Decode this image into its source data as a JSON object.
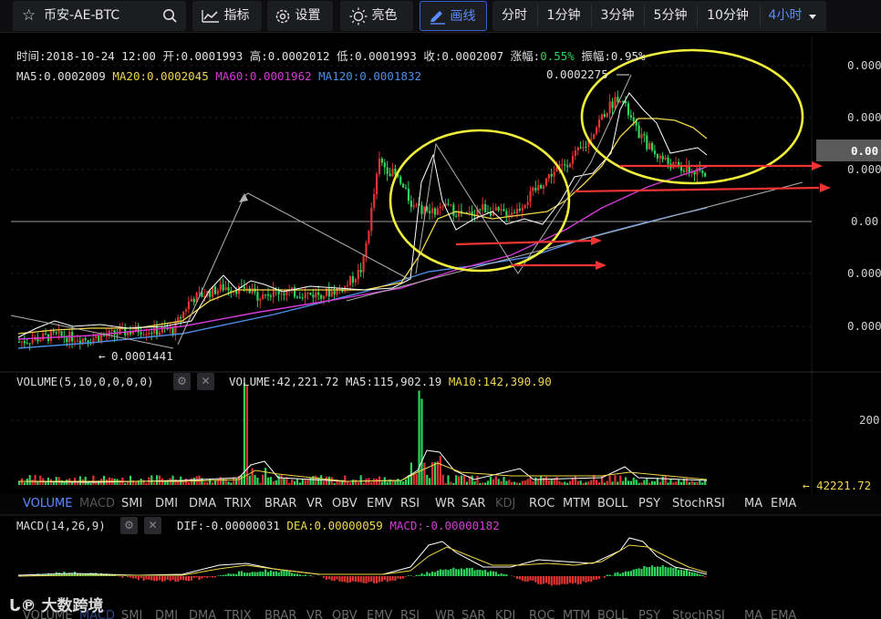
{
  "toolbar": {
    "symbol": "币安-AE-BTC",
    "indicator_label": "指标",
    "settings_label": "设置",
    "brightness_label": "亮色",
    "draw_label": "画线",
    "intervals": [
      "分时",
      "1分钟",
      "3分钟",
      "5分钟",
      "10分钟",
      "4小时"
    ],
    "active_interval": "4小时"
  },
  "info": {
    "time": "时间:2018-10-24 12:00",
    "open": "开:0.0001993",
    "high": "高:0.0002012",
    "low": "低:0.0001993",
    "close": "收:0.0002007",
    "change_label": "涨幅:",
    "change_value": "0.55%",
    "amplitude_label": "振幅:",
    "amplitude_value": "0.95%"
  },
  "ma_legend": {
    "ma5": "MA5:0.0002009",
    "ma20": "MA20:0.0002045",
    "ma60": "MA60:0.0001962",
    "ma120": "MA120:0.0001832"
  },
  "price_annotations": {
    "high_marker": "0.0002275",
    "low_marker": "0.0001441",
    "current_price_tag": "0.00"
  },
  "volume_legend": {
    "title": "VOLUME(5,10,0,0,0,0)",
    "volume": "VOLUME:42,221.72",
    "ma5": "MA5:115,902.19",
    "ma10": "MA10:142,390.90",
    "axis_tick": "200",
    "last_value": "42221.72"
  },
  "indicator_tabs": [
    "VOLUME",
    "MACD",
    "SMI",
    "DMI",
    "DMA",
    "TRIX",
    "BRAR",
    "VR",
    "OBV",
    "EMV",
    "RSI",
    "WR",
    "SAR",
    "KDJ",
    "ROC",
    "MTM",
    "BOLL",
    "PSY",
    "StochRSI",
    "MA",
    "EMA"
  ],
  "macd_legend": {
    "title": "MACD(14,26,9)",
    "dif": "DIF:-0.00000031",
    "dea": "DEA:0.00000059",
    "macd": "MACD:-0.00000182"
  },
  "watermark": "大数跨境",
  "colors": {
    "up": "#e33333",
    "down": "#2ed45c",
    "ma5": "#ffffff",
    "ma20": "#f0d74a",
    "ma60": "#d43bd6",
    "ma120": "#4c8fe8",
    "annotation_circle": "#f2ef3a",
    "annotation_arrow": "#ee3333",
    "accent": "#5b8bff"
  },
  "chart_data": {
    "type": "candlestick",
    "symbol": "AE/BTC",
    "interval": "4h",
    "last_bar": {
      "time": "2018-10-24 12:00",
      "open": 0.0001993,
      "high": 0.0002012,
      "low": 0.0001993,
      "close": 0.0002007,
      "change_pct": 0.55,
      "amplitude_pct": 0.95
    },
    "marked_extremes": {
      "high": 0.0002275,
      "low": 0.0001441
    },
    "moving_averages": {
      "MA5": 0.0002009,
      "MA20": 0.0002045,
      "MA60": 0.0001962,
      "MA120": 0.0001832
    },
    "y_axis_tick_labels": [
      "0.000",
      "0.000",
      "0.00",
      "0.000",
      "0.00",
      "0.000",
      "0.000"
    ],
    "volume": {
      "last": 42221.72,
      "MA5": 115902.19,
      "MA10": 142390.9
    },
    "macd": {
      "params": [
        14,
        26,
        9
      ],
      "DIF": -3.1e-07,
      "DEA": 5.9e-07,
      "MACD": -1.82e-06
    },
    "close_series_approx": [
      0.000146,
      0.000147,
      0.000148,
      0.0001475,
      0.000147,
      0.000148,
      0.000149,
      0.00015,
      0.0001495,
      0.00015,
      0.00016,
      0.000162,
      0.000164,
      0.000163,
      0.000161,
      0.0001625,
      0.000162,
      0.0001615,
      0.000162,
      0.000164,
      0.00017,
      0.000205,
      0.0002,
      0.00019,
      0.000188,
      0.00019,
      0.000187,
      0.00019,
      0.000188,
      0.000189,
      0.000195,
      0.000201,
      0.000205,
      0.00021,
      0.00022,
      0.000227,
      0.000215,
      0.000208,
      0.000204,
      0.000202,
      0.0002007
    ]
  }
}
